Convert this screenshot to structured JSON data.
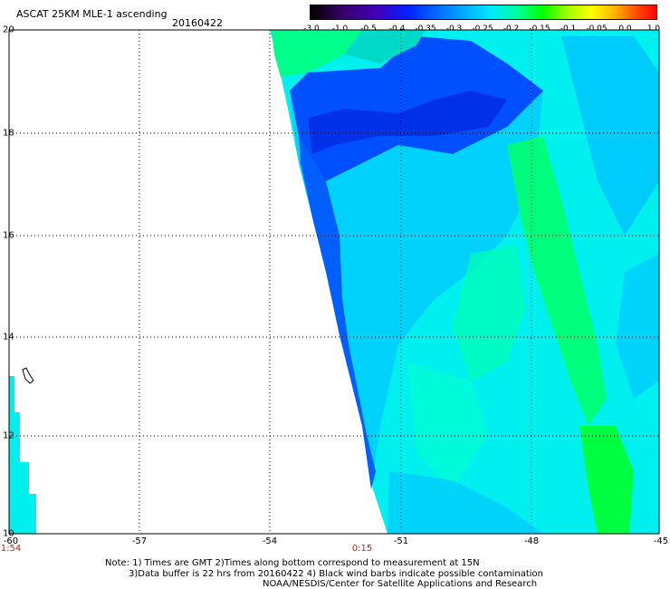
{
  "title": "ASCAT 25KM MLE-1 ascending",
  "date": "20160422",
  "colorbar": {
    "ticks": [
      "-3.0",
      "-1.0",
      "-0.5",
      "-0.4",
      "-0.35",
      "-0.3",
      "-0.25",
      "-0.2",
      "-0.15",
      "-0.1",
      "-0.05",
      "0.0",
      "1.0"
    ]
  },
  "axes": {
    "lat_labels": [
      "20",
      "18",
      "16",
      "14",
      "12",
      "10"
    ],
    "lon_labels": [
      "-60",
      "-57",
      "-54",
      "-51",
      "-48",
      "-45"
    ],
    "lat_range": [
      10,
      20
    ],
    "lon_range": [
      -60,
      -45
    ]
  },
  "times": [
    "1:54",
    "0:15"
  ],
  "notes": [
    "Note: 1) Times are GMT 2)Times along bottom correspond to measurement at 15N",
    "3)Data buffer is 22 hrs from 20160422 4) Black wind barbs indicate possible contamination",
    "NOAA/NESDIS/Center for Satellite Applications and Research"
  ],
  "colors": {
    "swath_base": "#00ffee",
    "low_mle": "#0044ff",
    "high_mle": "#00ff44"
  }
}
